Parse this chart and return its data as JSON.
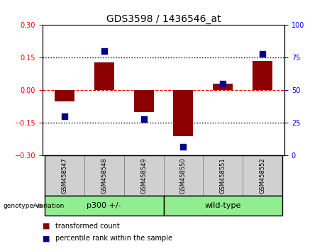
{
  "title": "GDS3598 / 1436546_at",
  "samples": [
    "GSM458547",
    "GSM458548",
    "GSM458549",
    "GSM458550",
    "GSM458551",
    "GSM458552"
  ],
  "bar_values": [
    -0.05,
    0.13,
    -0.1,
    -0.21,
    0.03,
    0.135
  ],
  "percentile_values": [
    30,
    80,
    28,
    7,
    55,
    78
  ],
  "bar_color": "#8B0000",
  "dot_color": "#00008B",
  "ylim_left": [
    -0.3,
    0.3
  ],
  "ylim_right": [
    0,
    100
  ],
  "yticks_left": [
    -0.3,
    -0.15,
    0,
    0.15,
    0.3
  ],
  "yticks_right": [
    0,
    25,
    50,
    75,
    100
  ],
  "legend_items": [
    "transformed count",
    "percentile rank within the sample"
  ],
  "legend_colors": [
    "#8B0000",
    "#00008B"
  ],
  "group_annotation_label": "genotype/variation",
  "p300_label": "p300 +/-",
  "wildtype_label": "wild-type",
  "p300_indices": [
    0,
    1,
    2
  ],
  "wildtype_indices": [
    3,
    4,
    5
  ],
  "bar_width": 0.5,
  "dot_size": 40,
  "label_box_color": "#d0d0d0",
  "group_box_color": "#90EE90",
  "group_box_edge": "#228B22"
}
